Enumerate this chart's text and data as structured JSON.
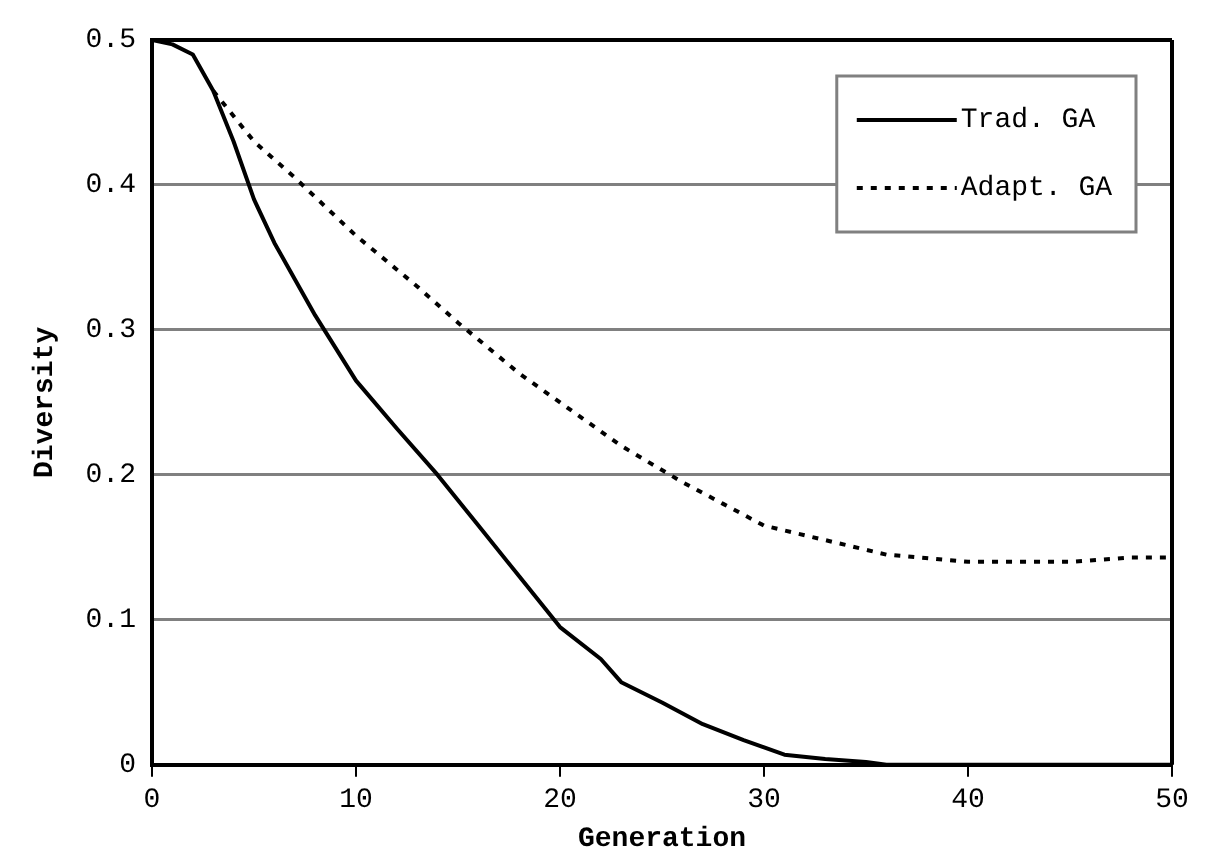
{
  "chart_data": {
    "type": "line",
    "xlabel": "Generation",
    "ylabel": "Diversity",
    "xlim": [
      0,
      50
    ],
    "xticks": [
      0,
      10,
      20,
      30,
      40,
      50
    ],
    "ylim": [
      0,
      0.5
    ],
    "yticks": [
      0,
      0.1,
      0.2,
      0.3,
      0.4,
      0.5
    ],
    "grid": "y",
    "legend": "top right",
    "marker": "none",
    "series": [
      {
        "name": "Trad. GA",
        "color": "#000000",
        "line_style": "solid",
        "x": [
          0,
          1,
          2,
          3,
          4,
          5,
          6,
          7,
          8,
          10,
          12,
          14,
          16,
          18,
          20,
          22,
          23,
          25,
          27,
          29,
          31,
          33,
          35,
          36,
          40,
          50
        ],
        "values": [
          0.5,
          0.497,
          0.49,
          0.465,
          0.43,
          0.39,
          0.36,
          0.335,
          0.31,
          0.265,
          0.232,
          0.2,
          0.165,
          0.13,
          0.095,
          0.073,
          0.057,
          0.043,
          0.028,
          0.017,
          0.007,
          0.004,
          0.002,
          0,
          0,
          0
        ]
      },
      {
        "name": "Adapt. GA",
        "color": "#000000",
        "line_style": "dotted",
        "x": [
          3,
          5,
          7,
          10,
          13,
          15,
          18,
          20,
          23,
          26,
          28,
          30,
          33,
          36,
          40,
          45,
          48,
          50
        ],
        "values": [
          0.465,
          0.43,
          0.405,
          0.365,
          0.33,
          0.305,
          0.27,
          0.25,
          0.22,
          0.195,
          0.18,
          0.165,
          0.155,
          0.145,
          0.14,
          0.14,
          0.143,
          0.143
        ]
      }
    ]
  }
}
